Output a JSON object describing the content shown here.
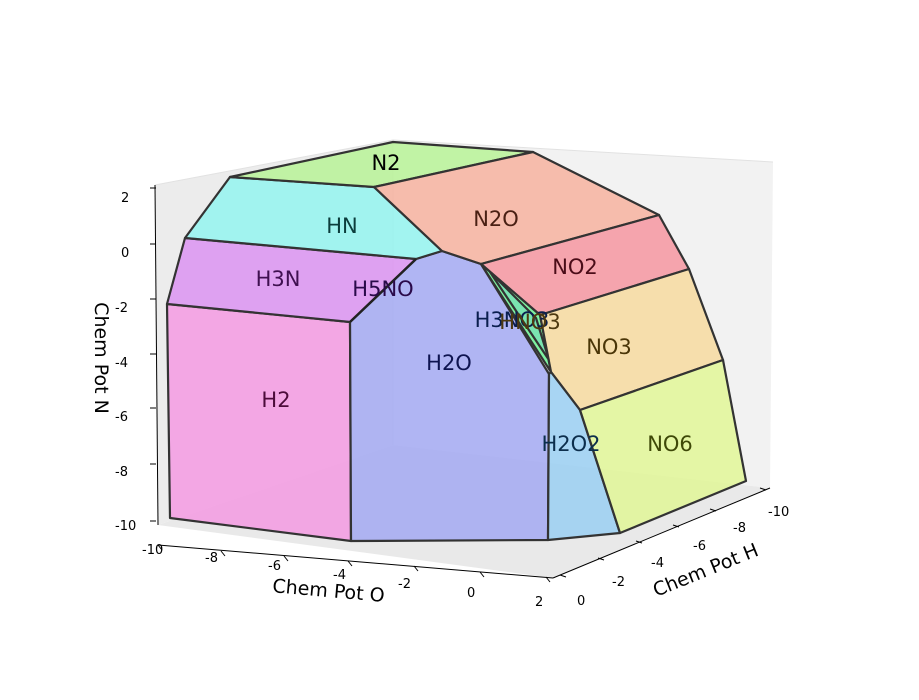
{
  "chart_data": {
    "type": "3d-phase-diagram",
    "xlabel": "Chem Pot O",
    "ylabel": "Chem Pot H",
    "zlabel": "Chem Pot N",
    "xlim": [
      -10,
      2
    ],
    "ylim": [
      -10,
      0
    ],
    "zlim": [
      -10,
      2
    ],
    "x_ticks": [
      "-10",
      "-8",
      "-6",
      "-4",
      "-2",
      "0",
      "2"
    ],
    "y_ticks": [
      "0",
      "-2",
      "-4",
      "-6",
      "-8",
      "-10"
    ],
    "z_ticks": [
      "2",
      "0",
      "-2",
      "-4",
      "-6",
      "-8",
      "-10"
    ],
    "grid": false,
    "regions": [
      {
        "name": "N2",
        "color": "#b3f48f"
      },
      {
        "name": "HN",
        "color": "#8cf5f0"
      },
      {
        "name": "N2O",
        "color": "#f7ad98"
      },
      {
        "name": "H3N",
        "color": "#da8cf2"
      },
      {
        "name": "H5NO",
        "color": "#9da6ee"
      },
      {
        "name": "NO2",
        "color": "#f68e9a"
      },
      {
        "name": "H3NO3",
        "color": "#5ef28b"
      },
      {
        "name": "HNO3",
        "color": "#78e0b6"
      },
      {
        "name": "NO3",
        "color": "#f7d898"
      },
      {
        "name": "H2",
        "color": "#f594e2"
      },
      {
        "name": "H2O",
        "color": "#9ea4f4"
      },
      {
        "name": "H2O2",
        "color": "#93cdf3"
      },
      {
        "name": "NO6",
        "color": "#e0f78f"
      }
    ]
  }
}
